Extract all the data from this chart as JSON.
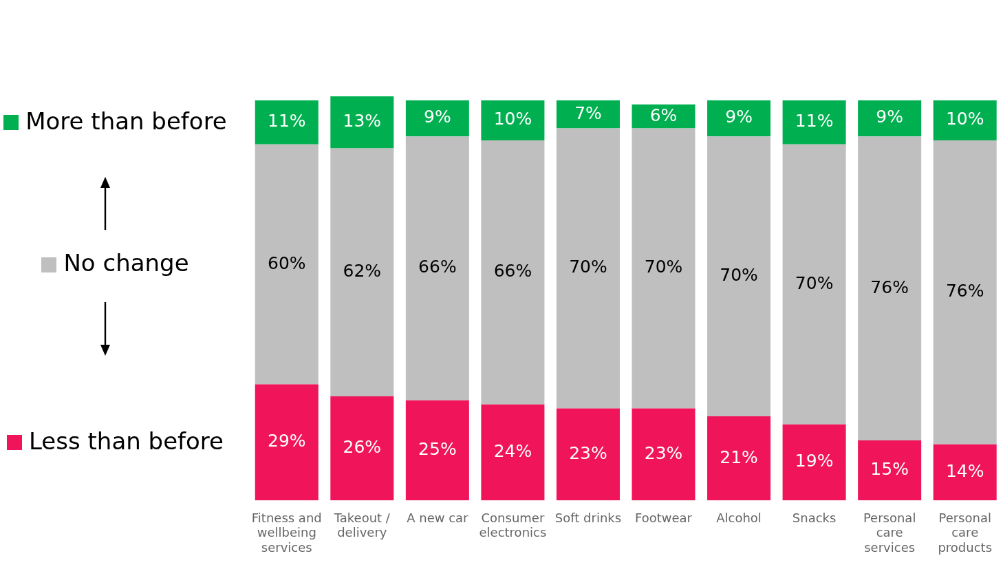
{
  "chart_data": {
    "type": "bar",
    "stacked": true,
    "categories": [
      "Fitness and wellbeing services",
      "Takeout / delivery",
      "A new car",
      "Consumer electronics",
      "Soft drinks",
      "Footwear",
      "Alcohol",
      "Snacks",
      "Personal care services",
      "Personal care products"
    ],
    "series": [
      {
        "name": "Less than before",
        "color": "#f0145a",
        "values": [
          29,
          26,
          25,
          24,
          23,
          23,
          21,
          19,
          15,
          14
        ],
        "value_labels": [
          "29%",
          "26%",
          "25%",
          "24%",
          "23%",
          "23%",
          "21%",
          "19%",
          "15%",
          "14%"
        ]
      },
      {
        "name": "No change",
        "color": "#bfbfbf",
        "values": [
          60,
          62,
          66,
          66,
          70,
          70,
          70,
          70,
          76,
          76
        ],
        "value_labels": [
          "60%",
          "62%",
          "66%",
          "66%",
          "70%",
          "70%",
          "70%",
          "70%",
          "76%",
          "76%"
        ]
      },
      {
        "name": "More than before",
        "color": "#00b050",
        "values": [
          11,
          13,
          9,
          10,
          7,
          6,
          9,
          11,
          9,
          10
        ],
        "value_labels": [
          "11%",
          "13%",
          "9%",
          "10%",
          "7%",
          "6%",
          "9%",
          "11%",
          "9%",
          "10%"
        ]
      }
    ],
    "tick_labels": "x",
    "legend": "left"
  }
}
